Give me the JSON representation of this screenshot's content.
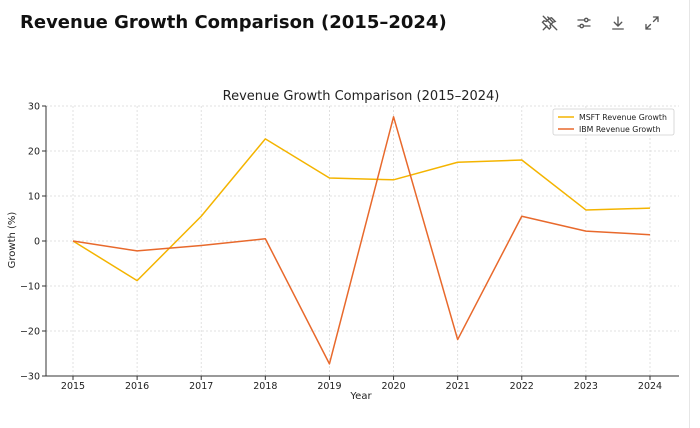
{
  "header": {
    "title": "Revenue Growth Comparison (2015–2024)",
    "toolbar": [
      {
        "name": "unpin-icon"
      },
      {
        "name": "settings-sliders-icon"
      },
      {
        "name": "download-icon"
      },
      {
        "name": "expand-icon"
      }
    ]
  },
  "colors": {
    "msft": "#f4b400",
    "ibm": "#e8692c",
    "grid": "#d9d9d9",
    "axis": "#333333"
  },
  "chart_data": {
    "type": "line",
    "title": "Revenue Growth Comparison (2015–2024)",
    "xlabel": "Year",
    "ylabel": "Growth (%)",
    "x": [
      2015,
      2016,
      2017,
      2018,
      2019,
      2020,
      2021,
      2022,
      2023,
      2024
    ],
    "ylim": [
      -30,
      30
    ],
    "yticks": [
      30,
      20,
      10,
      0,
      -10,
      -20,
      -30
    ],
    "ytick_labels": [
      "30",
      "20",
      "10",
      "0",
      "−10",
      "−20",
      "−30"
    ],
    "grid": true,
    "legend": "top-right",
    "series": [
      {
        "name": "MSFT Revenue Growth",
        "values": [
          0,
          -8.8,
          5.5,
          22.7,
          14.0,
          13.6,
          17.5,
          18.0,
          6.9,
          7.3
        ]
      },
      {
        "name": "IBM Revenue Growth",
        "values": [
          0,
          -2.2,
          -1.0,
          0.5,
          -27.3,
          27.6,
          -21.9,
          5.5,
          2.2,
          1.4
        ]
      }
    ]
  }
}
